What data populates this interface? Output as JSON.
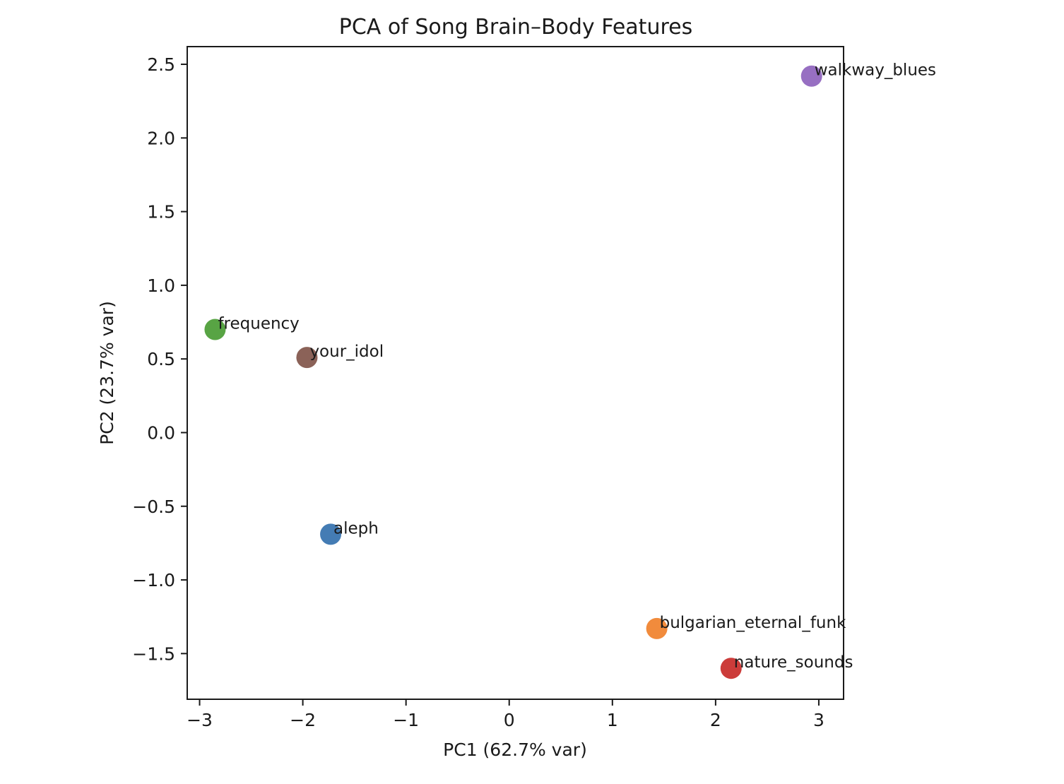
{
  "chart_data": {
    "type": "scatter",
    "title": "PCA of Song Brain–Body Features",
    "xlabel": "PC1 (62.7% var)",
    "ylabel": "PC2 (23.7% var)",
    "xlim": [
      -3.12,
      3.24
    ],
    "ylim": [
      -1.81,
      2.62
    ],
    "xticks": [
      {
        "value": -3,
        "label": "−3"
      },
      {
        "value": -2,
        "label": "−2"
      },
      {
        "value": -1,
        "label": "−1"
      },
      {
        "value": 0,
        "label": "0"
      },
      {
        "value": 1,
        "label": "1"
      },
      {
        "value": 2,
        "label": "2"
      },
      {
        "value": 3,
        "label": "3"
      }
    ],
    "yticks": [
      {
        "value": 2.5,
        "label": "2.5"
      },
      {
        "value": 2.0,
        "label": "2.0"
      },
      {
        "value": 1.5,
        "label": "1.5"
      },
      {
        "value": 1.0,
        "label": "1.0"
      },
      {
        "value": 0.5,
        "label": "0.5"
      },
      {
        "value": 0.0,
        "label": "0.0"
      },
      {
        "value": -0.5,
        "label": "−0.5"
      },
      {
        "value": -1.0,
        "label": "−1.0"
      },
      {
        "value": -1.5,
        "label": "−1.5"
      }
    ],
    "grid": false,
    "legend": false,
    "points": [
      {
        "label": "aleph",
        "x": -1.73,
        "y": -0.69,
        "color": "#3a75b0"
      },
      {
        "label": "bulgarian_eternal_funk",
        "x": 1.43,
        "y": -1.33,
        "color": "#f08532"
      },
      {
        "label": "frequency",
        "x": -2.85,
        "y": 0.7,
        "color": "#4f9f3a"
      },
      {
        "label": "nature_sounds",
        "x": 2.15,
        "y": -1.6,
        "color": "#c9312f"
      },
      {
        "label": "walkway_blues",
        "x": 2.93,
        "y": 2.42,
        "color": "#9167bf"
      },
      {
        "label": "your_idol",
        "x": -1.96,
        "y": 0.51,
        "color": "#855a4f"
      }
    ]
  }
}
